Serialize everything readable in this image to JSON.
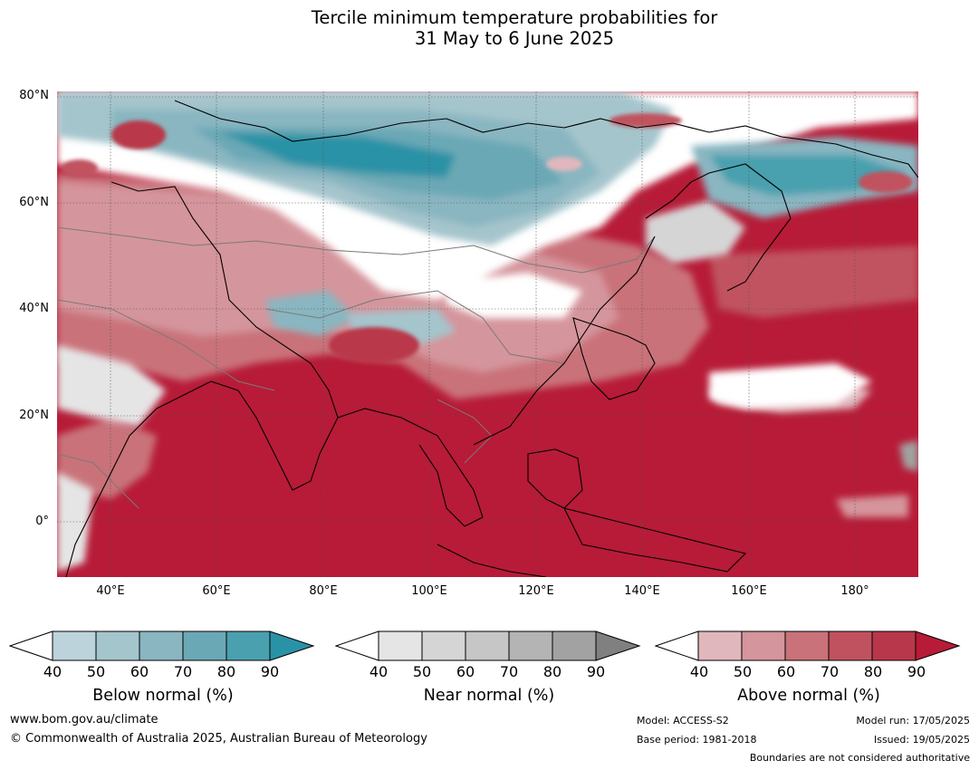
{
  "title": {
    "line1": "Tercile minimum temperature probabilities for",
    "line2": "31 May to 6 June 2025"
  },
  "map": {
    "lat_labels": [
      "80°N",
      "60°N",
      "40°N",
      "20°N",
      "0°"
    ],
    "lon_labels": [
      "40°E",
      "60°E",
      "80°E",
      "100°E",
      "120°E",
      "140°E",
      "160°E",
      "180°"
    ],
    "colors": {
      "below": [
        "#bcd3db",
        "#a5c5cc",
        "#89b6c1",
        "#6ba8b5",
        "#4aa0af",
        "#2a92a6"
      ],
      "near": [
        "#e5e5e5",
        "#d5d5d5",
        "#c6c6c6",
        "#b4b4b4",
        "#a2a2a2",
        "#808080"
      ],
      "above": [
        "#e0b7bc",
        "#d5959c",
        "#c97279",
        "#c0525f",
        "#b9374a",
        "#b71b37"
      ],
      "land_outline": "#000000",
      "border": "#7a7a7a"
    }
  },
  "legends": [
    {
      "label": "Below normal (%)",
      "ticks": [
        "40",
        "50",
        "60",
        "70",
        "80",
        "90"
      ]
    },
    {
      "label": "Near normal (%)",
      "ticks": [
        "40",
        "50",
        "60",
        "70",
        "80",
        "90"
      ]
    },
    {
      "label": "Above normal (%)",
      "ticks": [
        "40",
        "50",
        "60",
        "70",
        "80",
        "90"
      ]
    }
  ],
  "footer": {
    "website": "www.bom.gov.au/climate",
    "copyright": "© Commonwealth of Australia 2025, Australian Bureau of Meteorology",
    "model": "Model: ACCESS-S2",
    "base_period": "Base period: 1981-2018",
    "model_run": "Model run: 17/05/2025",
    "issued": "Issued: 19/05/2025",
    "disclaimer": "Boundaries are not considered authoritative"
  }
}
